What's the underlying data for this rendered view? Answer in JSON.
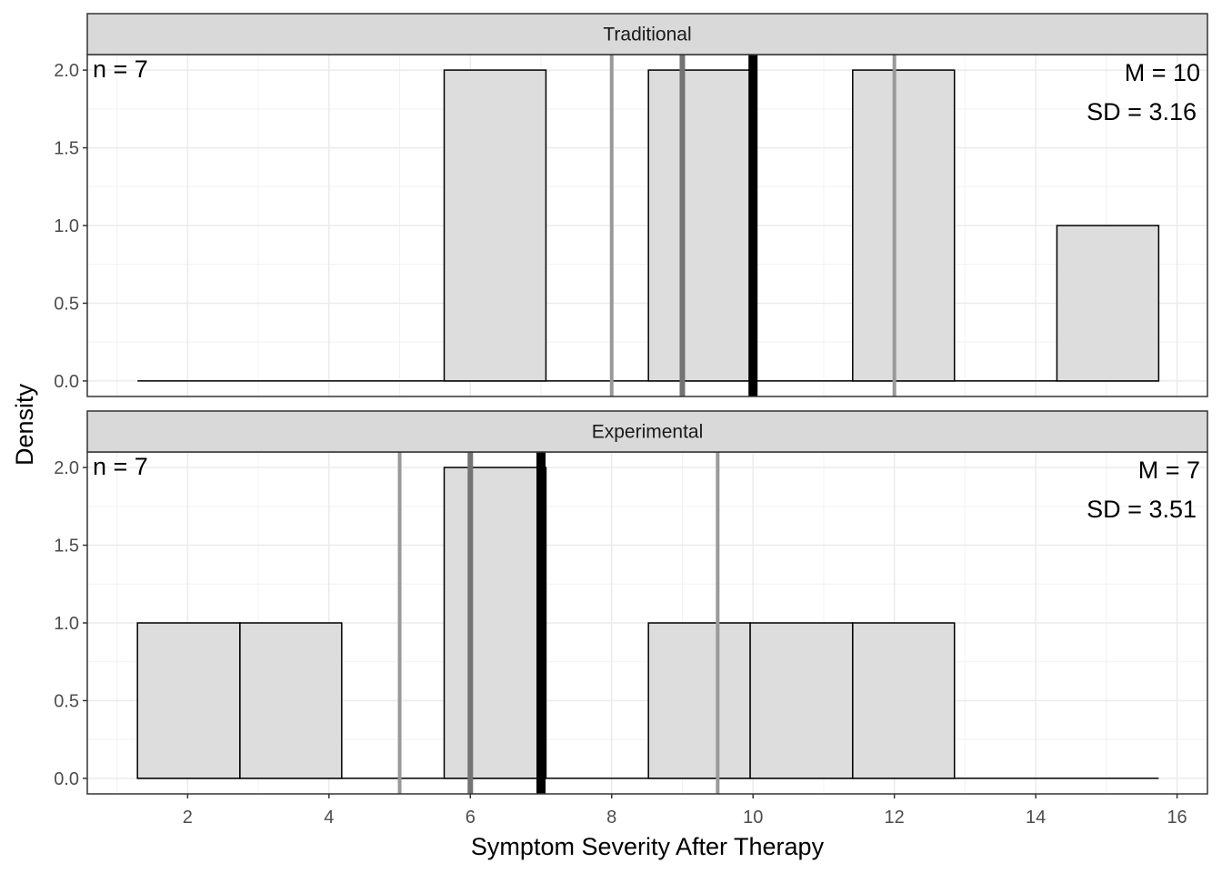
{
  "chart_data": {
    "type": "bar",
    "subtype": "faceted histogram",
    "xlabel": "Symptom Severity After Therapy",
    "ylabel": "Density",
    "xlim": [
      0.58,
      16.43
    ],
    "ylim": [
      -0.1,
      2.1
    ],
    "x_ticks": [
      2,
      4,
      6,
      8,
      10,
      12,
      14,
      16
    ],
    "y_ticks": [
      "0.0",
      "0.5",
      "1.0",
      "1.5",
      "2.0"
    ],
    "grid": true,
    "bin_edges": [
      1.29,
      2.74,
      4.18,
      5.63,
      7.07,
      8.52,
      9.96,
      11.41,
      12.85,
      14.3,
      15.74
    ],
    "colors": {
      "fill": "#dddddd",
      "quartile_line": "#999999",
      "median_line": "#737373",
      "mean_line": "#000000",
      "strip": "#d9d9d9"
    },
    "panels": [
      {
        "title": "Traditional",
        "counts": [
          0,
          0,
          0,
          2,
          0,
          2,
          0,
          2,
          0,
          1
        ],
        "n_label": "n = 7",
        "mean_label": "M = 10",
        "sd_label": "SD = 3.16",
        "mean": 10,
        "median": 9,
        "quartiles": [
          8,
          12
        ]
      },
      {
        "title": "Experimental",
        "counts": [
          1,
          1,
          0,
          2,
          0,
          1,
          1,
          1,
          0,
          0
        ],
        "n_label": "n = 7",
        "mean_label": "M = 7",
        "sd_label": "SD = 3.51",
        "mean": 7,
        "median": 6,
        "quartiles": [
          5,
          9.5
        ]
      }
    ]
  }
}
